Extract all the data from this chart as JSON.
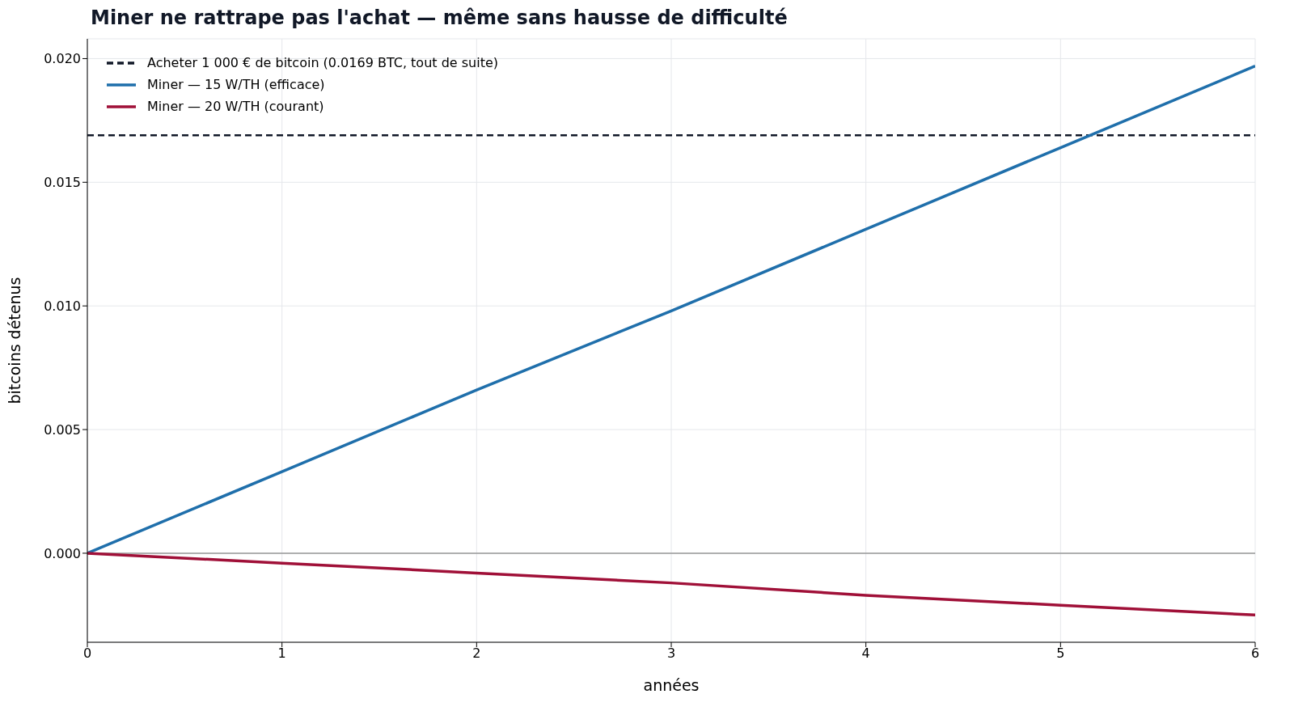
{
  "chart_data": {
    "type": "line",
    "title": "Miner ne rattrape pas l'achat — même sans hausse de difficulté",
    "xlabel": "années",
    "ylabel": "bitcoins détenus",
    "series": [
      {
        "name": "Acheter 1 000 € de bitcoin (0.0169 BTC, tout de suite)",
        "color": "#111827",
        "line_style": "dashed",
        "x": [
          0,
          6
        ],
        "values": [
          0.0169,
          0.0169
        ]
      },
      {
        "name": "Miner — 15 W/TH (efficace)",
        "color": "#1f6fab",
        "x": [
          0,
          1,
          2,
          3,
          4,
          5,
          6
        ],
        "values": [
          0,
          0.0033,
          0.0066,
          0.0098,
          0.0131,
          0.0164,
          0.0197
        ]
      },
      {
        "name": "Miner — 20 W/TH (courant)",
        "color": "#a01038",
        "x": [
          0,
          1,
          2,
          3,
          4,
          5,
          6
        ],
        "values": [
          0,
          -0.0004,
          -0.0008,
          -0.0012,
          -0.0017,
          -0.0021,
          -0.0025
        ]
      }
    ],
    "xlim": [
      0,
      6
    ],
    "xticks": [
      0,
      1,
      2,
      3,
      4,
      5,
      6
    ],
    "ylim": [
      -0.0036,
      0.0208
    ],
    "yticks": [
      {
        "value": 0,
        "label": "0.000"
      },
      {
        "value": 0.005,
        "label": "0.005"
      },
      {
        "value": 0.01,
        "label": "0.010"
      },
      {
        "value": 0.015,
        "label": "0.015"
      },
      {
        "value": 0.02,
        "label": "0.020"
      }
    ],
    "ref_lines": [
      {
        "axis": "y",
        "value": 0,
        "color": "#999999"
      }
    ],
    "grid": true,
    "legend": "top left",
    "marker": "none",
    "line_style": "solid"
  }
}
